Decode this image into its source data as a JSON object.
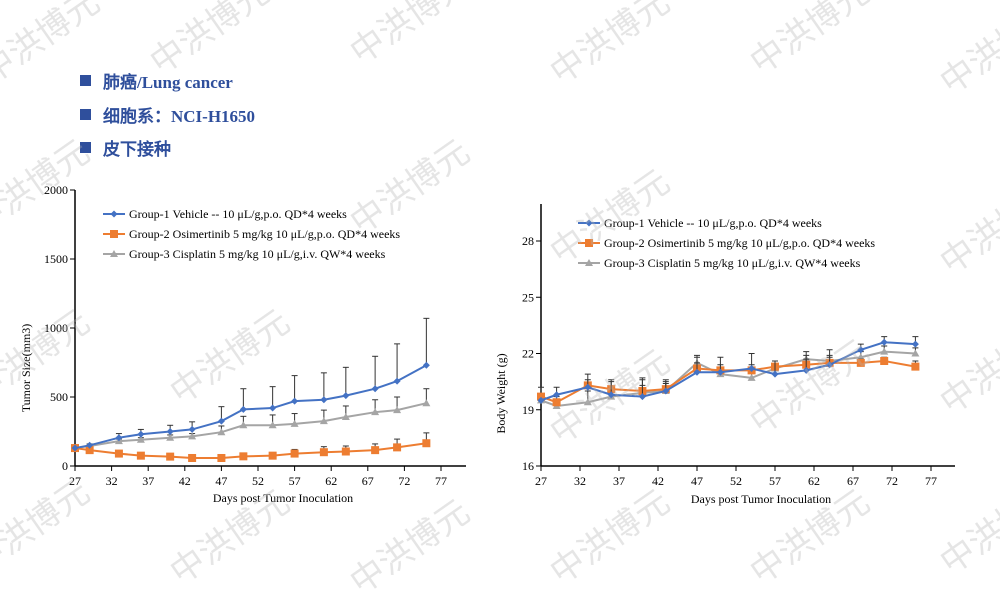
{
  "header": {
    "bullets": [
      "肺癌/Lung cancer",
      "细胞系：NCI-H1650",
      "皮下接种"
    ]
  },
  "watermark": "中洪博元",
  "colors": {
    "g1": "#4472c4",
    "g2": "#ed7d31",
    "g3": "#a5a5a5",
    "title": "#2f4f9c"
  },
  "chart_data": [
    {
      "type": "line",
      "title": "",
      "xlabel": "Days post Tumor Inoculation",
      "ylabel": "Tumor Size(mm3)",
      "xlim": [
        27,
        77
      ],
      "ylim": [
        0,
        2000
      ],
      "xticks": [
        "27",
        "32",
        "37",
        "42",
        "47",
        "52",
        "57",
        "62",
        "67",
        "72",
        "77"
      ],
      "yticks": [
        "0",
        "500",
        "1000",
        "1500",
        "2000"
      ],
      "legend": "top-left",
      "x": [
        27,
        29,
        33,
        36,
        40,
        43,
        47,
        50,
        54,
        57,
        61,
        64,
        68,
        71,
        75
      ],
      "series": [
        {
          "name": "Group-1 Vehicle -- 10 μL/g,p.o. QD*4 weeks",
          "color": "#4472c4",
          "marker": "diamond",
          "values": [
            130,
            150,
            205,
            230,
            250,
            265,
            325,
            410,
            420,
            470,
            480,
            510,
            560,
            615,
            730
          ],
          "err": [
            0,
            10,
            30,
            35,
            45,
            55,
            105,
            150,
            155,
            185,
            195,
            205,
            235,
            270,
            340
          ]
        },
        {
          "name": "Group-2 Osimertinib 5 mg/kg 10 μL/g,p.o. QD*4 weeks",
          "color": "#ed7d31",
          "marker": "square",
          "values": [
            130,
            115,
            90,
            75,
            68,
            58,
            58,
            70,
            75,
            90,
            100,
            105,
            115,
            135,
            165
          ],
          "err": [
            0,
            5,
            8,
            8,
            8,
            6,
            8,
            12,
            15,
            30,
            40,
            40,
            45,
            60,
            75
          ]
        },
        {
          "name": "Group-3 Cisplatin 5 mg/kg 10 μL/g,i.v. QW*4 weeks",
          "color": "#a5a5a5",
          "marker": "triangle",
          "values": [
            130,
            145,
            180,
            190,
            205,
            215,
            245,
            295,
            295,
            305,
            325,
            355,
            390,
            405,
            455
          ],
          "err": [
            0,
            5,
            15,
            15,
            20,
            20,
            45,
            65,
            75,
            75,
            80,
            80,
            90,
            95,
            105
          ]
        }
      ]
    },
    {
      "type": "line",
      "title": "",
      "xlabel": "Days post Tumor Inoculation",
      "ylabel": "Body Weight (g)",
      "xlim": [
        27,
        77
      ],
      "ylim": [
        16,
        30
      ],
      "xticks": [
        "27",
        "32",
        "37",
        "42",
        "47",
        "52",
        "57",
        "62",
        "67",
        "72",
        "77"
      ],
      "yticks": [
        "16",
        "19",
        "22",
        "25",
        "28"
      ],
      "legend": "top-left",
      "x": [
        27,
        29,
        33,
        36,
        40,
        43,
        47,
        50,
        54,
        57,
        61,
        64,
        68,
        71,
        75
      ],
      "series": [
        {
          "name": "Group-1 Vehicle -- 10 μL/g,p.o. QD*4 weeks",
          "color": "#4472c4",
          "marker": "diamond",
          "values": [
            19.5,
            19.8,
            20.2,
            19.8,
            19.7,
            20.0,
            21.0,
            21.0,
            21.2,
            20.9,
            21.1,
            21.4,
            22.2,
            22.6,
            22.5
          ],
          "err": [
            0,
            0.4,
            0.7,
            0.8,
            1.0,
            0.6,
            0.8,
            0.8,
            0.8,
            0.7,
            1.0,
            0.8,
            0.3,
            0.3,
            0.4
          ]
        },
        {
          "name": "Group-2 Osimertinib 5 mg/kg 10 μL/g,p.o. QD*4 weeks",
          "color": "#ed7d31",
          "marker": "square",
          "values": [
            19.7,
            19.4,
            20.3,
            20.1,
            20.0,
            20.1,
            21.2,
            21.1,
            21.1,
            21.3,
            21.4,
            21.5,
            21.5,
            21.6,
            21.3
          ],
          "err": [
            0.5,
            0.3,
            0.3,
            0.4,
            0.6,
            0.4,
            0.3,
            0.3,
            0.3,
            0.3,
            0.3,
            0.3,
            0.2,
            0.2,
            0.3
          ]
        },
        {
          "name": "Group-3 Cisplatin 5 mg/kg 10 μL/g,i.v. QW*4 weeks",
          "color": "#a5a5a5",
          "marker": "triangle",
          "values": [
            19.5,
            19.2,
            19.4,
            19.7,
            19.9,
            20.0,
            21.5,
            20.9,
            20.7,
            21.2,
            21.7,
            21.6,
            21.8,
            22.1,
            22.0
          ],
          "err": [
            0.3,
            0.3,
            0.6,
            0.4,
            0.4,
            0.4,
            0.4,
            0.3,
            0.3,
            0.4,
            0.2,
            0.3,
            0.3,
            0.3,
            0.3
          ]
        }
      ]
    }
  ]
}
